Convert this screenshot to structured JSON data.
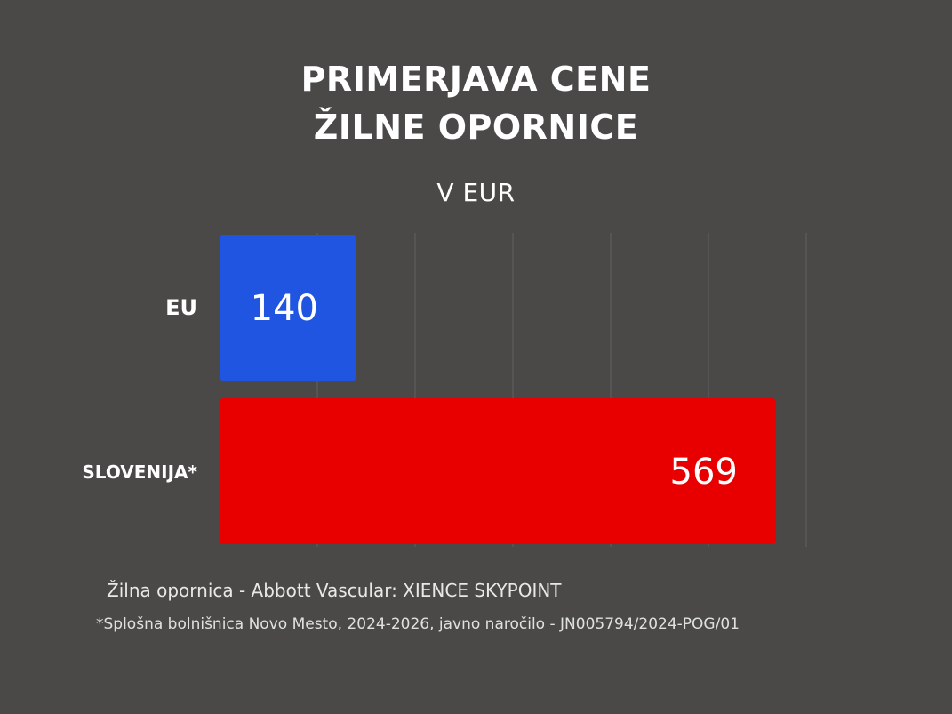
{
  "colors": {
    "background": "#4a4948",
    "eu": "#1f55e0",
    "slovenia": "#e80000",
    "grid": "#5a5958"
  },
  "chart_data": {
    "type": "bar",
    "orientation": "horizontal",
    "title": "PRIMERJAVA CENE ŽILNE OPORNICE",
    "title_lines": [
      "PRIMERJAVA CENE",
      "ŽILNE OPORNICE"
    ],
    "subtitle": "V EUR",
    "categories": [
      "EU",
      "SLOVENIJA*"
    ],
    "values": [
      140,
      569
    ],
    "value_labels": [
      "140",
      "569"
    ],
    "bar_colors": [
      "#1f55e0",
      "#e80000"
    ],
    "xlim": [
      0,
      650
    ],
    "grid": true,
    "legend": "none"
  },
  "footnotes": {
    "line1": "Žilna opornica - Abbott Vascular: XIENCE SKYPOINT",
    "line2": "*Splošna bolnišnica Novo Mesto, 2024-2026, javno naročilo - JN005794/2024-POG/01"
  }
}
